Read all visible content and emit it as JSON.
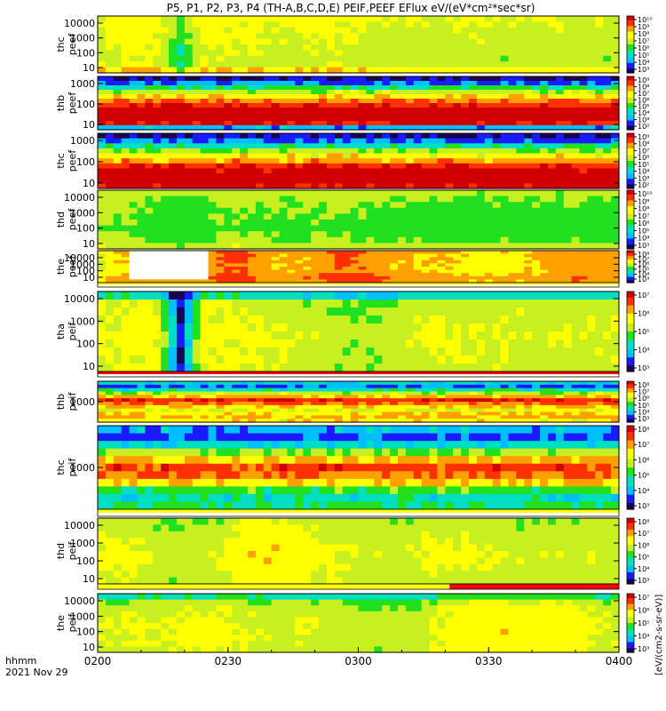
{
  "chart_data": {
    "type": "heatmap",
    "title": "P5, P1, P2, P3, P4 (TH-A,B,C,D,E) PEIF,PEEF EFlux eV/(eV*cm²*sec*sr)",
    "x_axis": {
      "ticks": [
        "0200",
        "0230",
        "0300",
        "0330",
        "0400"
      ],
      "range": [
        "02:00",
        "04:00"
      ],
      "label_line1": "hhmm",
      "label_line2": "2021 Nov 29"
    },
    "colorbar_label": "[eV/(cm2-s-sr-eV)]",
    "grid": false,
    "palette": [
      "#1b0052",
      "#1a1aff",
      "#00bfff",
      "#00e0c0",
      "#20e020",
      "#c8f020",
      "#ffff00",
      "#ffa000",
      "#ff3000",
      "#d00000"
    ],
    "panels": [
      {
        "name_line1": "thc",
        "name_line2": "peef",
        "yticks": [
          "10000",
          "1000",
          "100",
          "10"
        ],
        "ylog": true,
        "colorbar_ticks": [
          "10¹⁰",
          "10⁹",
          "10⁸",
          "10⁷",
          "10⁶",
          "10⁵",
          "10⁴",
          "10³"
        ],
        "profile": [
          5.5,
          5.4,
          5.3,
          5.3,
          5.2,
          5.1,
          5.0,
          4.9,
          5.0,
          6.2
        ],
        "time_mod": [
          0.3,
          0.5,
          0.8,
          0.4,
          -1.6,
          0.6,
          0.4,
          0.2,
          0.3,
          0.1,
          0.2,
          0.4,
          0.3,
          0.1,
          -0.1,
          0.0,
          -0.2,
          -0.1,
          0.1,
          0.0,
          -0.2,
          -0.1,
          0.0,
          -0.1,
          -0.2,
          -0.3
        ],
        "noise": 0.35
      },
      {
        "name_line1": "thb",
        "name_line2": "peef",
        "yticks": [
          "1000",
          "100",
          "10"
        ],
        "ylog": true,
        "colorbar_ticks": [
          "10⁹",
          "10⁸",
          "10⁷",
          "10⁶",
          "10⁵",
          "10⁴",
          "10³",
          "10²"
        ],
        "profile": [
          0.5,
          1.5,
          3.5,
          5.0,
          6.2,
          7.3,
          8.3,
          9.1,
          9.5,
          9.3,
          8.6,
          2.0
        ],
        "time_mod": [
          0.0
        ],
        "noise": 0.6
      },
      {
        "name_line1": "thc",
        "name_line2": "peef",
        "yticks": [
          "1000",
          "100",
          "10"
        ],
        "ylog": true,
        "colorbar_ticks": [
          "10⁹",
          "10⁸",
          "10⁷",
          "10⁶",
          "10⁵",
          "10⁴",
          "10³",
          "10²"
        ],
        "profile": [
          0.5,
          1.3,
          3.2,
          4.8,
          6.0,
          7.0,
          8.2,
          9.0,
          9.5,
          9.2,
          8.8
        ],
        "time_mod": [
          0.0
        ],
        "noise": 0.6
      },
      {
        "name_line1": "thd",
        "name_line2": "peef",
        "yticks": [
          "10000",
          "1000",
          "100",
          "10"
        ],
        "ylog": true,
        "colorbar_ticks": [
          "10¹⁰",
          "10⁹",
          "10⁸",
          "10⁷",
          "10⁶",
          "10⁵",
          "10⁴",
          "10³"
        ],
        "profile": [
          5.0,
          4.8,
          4.6,
          4.5,
          4.4,
          4.3,
          4.2,
          4.4,
          4.6,
          5.2
        ],
        "time_mod": [
          0.3,
          0.2,
          0.0,
          -0.3,
          -0.5,
          -0.4,
          0.2,
          0.1,
          0.0,
          -0.1,
          0.0,
          0.1,
          0.0,
          -0.1,
          -0.2,
          -0.2,
          -0.3,
          -0.2,
          -0.3,
          -0.2,
          -0.3,
          -0.2,
          -0.3,
          -0.2,
          -0.3,
          -0.3
        ],
        "noise": 0.25
      },
      {
        "name_line1": "the",
        "name_line2": "peef",
        "yticks": [
          "10000",
          "1000",
          "100",
          "10"
        ],
        "ylog": true,
        "colorbar_ticks": [
          "10⁸",
          "10⁷",
          "10⁶",
          "10⁵",
          "10⁴",
          "10³"
        ],
        "profile": [
          6.6,
          6.5,
          6.4,
          6.4,
          6.3,
          6.3,
          6.4,
          6.6,
          7.0,
          6.8
        ],
        "time_mod": [
          -1.2,
          0.0,
          0.0,
          0.0,
          0.0,
          0.0,
          1.3,
          1.2,
          0.3,
          0.2,
          0.3,
          0.9,
          1.2,
          0.9,
          0.3,
          0.2,
          0.1,
          0.0,
          -0.2,
          -0.3,
          -0.2,
          0.1,
          0.4,
          0.6,
          0.5,
          0.3
        ],
        "noise": 0.25,
        "fill_gap": {
          "from": "02:07",
          "to": "02:25"
        },
        "bottom_strip": [
          "#ffff00",
          "#ffffff"
        ]
      },
      {
        "name_line1": "tha",
        "name_line2": "peif",
        "yticks": [
          "10000",
          "1000",
          "100",
          "10"
        ],
        "ylog": true,
        "colorbar_ticks": [
          "10⁷",
          "10⁶",
          "10⁵",
          "10⁴",
          "10³"
        ],
        "profile": [
          3.0,
          5.0,
          5.2,
          5.3,
          5.4,
          5.5,
          5.4,
          5.3,
          5.3,
          5.2
        ],
        "time_mod": [
          0.2,
          0.3,
          0.5,
          0.4,
          -4.8,
          0.6,
          0.4,
          0.2,
          0.1,
          0.0,
          -0.2,
          -0.3,
          -0.6,
          -0.8,
          -0.3,
          0.0,
          0.2,
          0.1,
          0.0,
          0.1,
          0.0,
          -0.2,
          -0.1,
          0.0,
          -0.1,
          0.0
        ],
        "noise": 0.4,
        "bottom_strip": [
          "#ff0000",
          "#ffffff"
        ]
      },
      {
        "name_line1": "thb",
        "name_line2": "peif",
        "yticks": [
          "1000"
        ],
        "ylog": true,
        "colorbar_ticks": [
          "10⁸",
          "10⁷",
          "10⁶",
          "10⁵",
          "10⁴",
          "10³"
        ],
        "profile": [
          2.5,
          1.5,
          3.0,
          5.0,
          6.8,
          8.3,
          7.6,
          6.5,
          5.6,
          6.2,
          6.8,
          6.0
        ],
        "time_mod": [
          0.0
        ],
        "noise": 0.7
      },
      {
        "name_line1": "thc",
        "name_line2": "peif",
        "yticks": [
          "1000"
        ],
        "ylog": true,
        "colorbar_ticks": [
          "10⁸",
          "10⁷",
          "10⁶",
          "10⁵",
          "10⁴",
          "10³"
        ],
        "profile": [
          2.0,
          1.2,
          2.8,
          4.8,
          6.6,
          8.0,
          7.4,
          6.2,
          4.0,
          3.0,
          3.6
        ],
        "time_mod": [
          0.0
        ],
        "noise": 0.7,
        "bottom_strip": [
          "#ffff00",
          "#ffffff"
        ]
      },
      {
        "name_line1": "thd",
        "name_line2": "peif",
        "yticks": [
          "10000",
          "1000",
          "100",
          "10"
        ],
        "ylog": true,
        "colorbar_ticks": [
          "10⁸",
          "10⁷",
          "10⁶",
          "10⁵",
          "10⁴",
          "10³"
        ],
        "profile": [
          4.8,
          5.0,
          5.2,
          5.4,
          5.5,
          5.6,
          5.5,
          5.4,
          5.3,
          5.2
        ],
        "time_mod": [
          0.2,
          0.3,
          0.1,
          -0.5,
          -0.4,
          -0.3,
          0.0,
          0.8,
          0.9,
          0.7,
          0.4,
          0.2,
          0.0,
          -0.2,
          -0.3,
          -0.2,
          0.2,
          0.0,
          0.1,
          -0.1,
          -0.2,
          -0.3,
          -0.2,
          -0.3,
          -0.2,
          -0.4
        ],
        "noise": 0.3,
        "bottom_strip": [
          "#ffff00",
          "#ff0000"
        ],
        "strip_split": "03:21"
      },
      {
        "name_line1": "the",
        "name_line2": "peif",
        "yticks": [
          "10000",
          "1000",
          "100",
          "10"
        ],
        "ylog": true,
        "colorbar_ticks": [
          "10⁷",
          "10⁶",
          "10⁵",
          "10⁴",
          "10³"
        ],
        "profile": [
          3.2,
          4.6,
          5.0,
          5.2,
          5.3,
          5.4,
          5.4,
          5.3,
          5.3,
          5.2
        ],
        "time_mod": [
          0.2,
          0.0,
          0.3,
          0.1,
          0.4,
          0.5,
          0.3,
          0.2,
          0.0,
          -0.2,
          0.1,
          -0.1,
          -0.2,
          -0.4,
          -0.3,
          -0.5,
          0.0,
          0.6,
          0.8,
          0.9,
          0.7,
          0.6,
          0.8,
          0.6,
          0.2,
          0.0
        ],
        "noise": 0.35
      }
    ]
  }
}
